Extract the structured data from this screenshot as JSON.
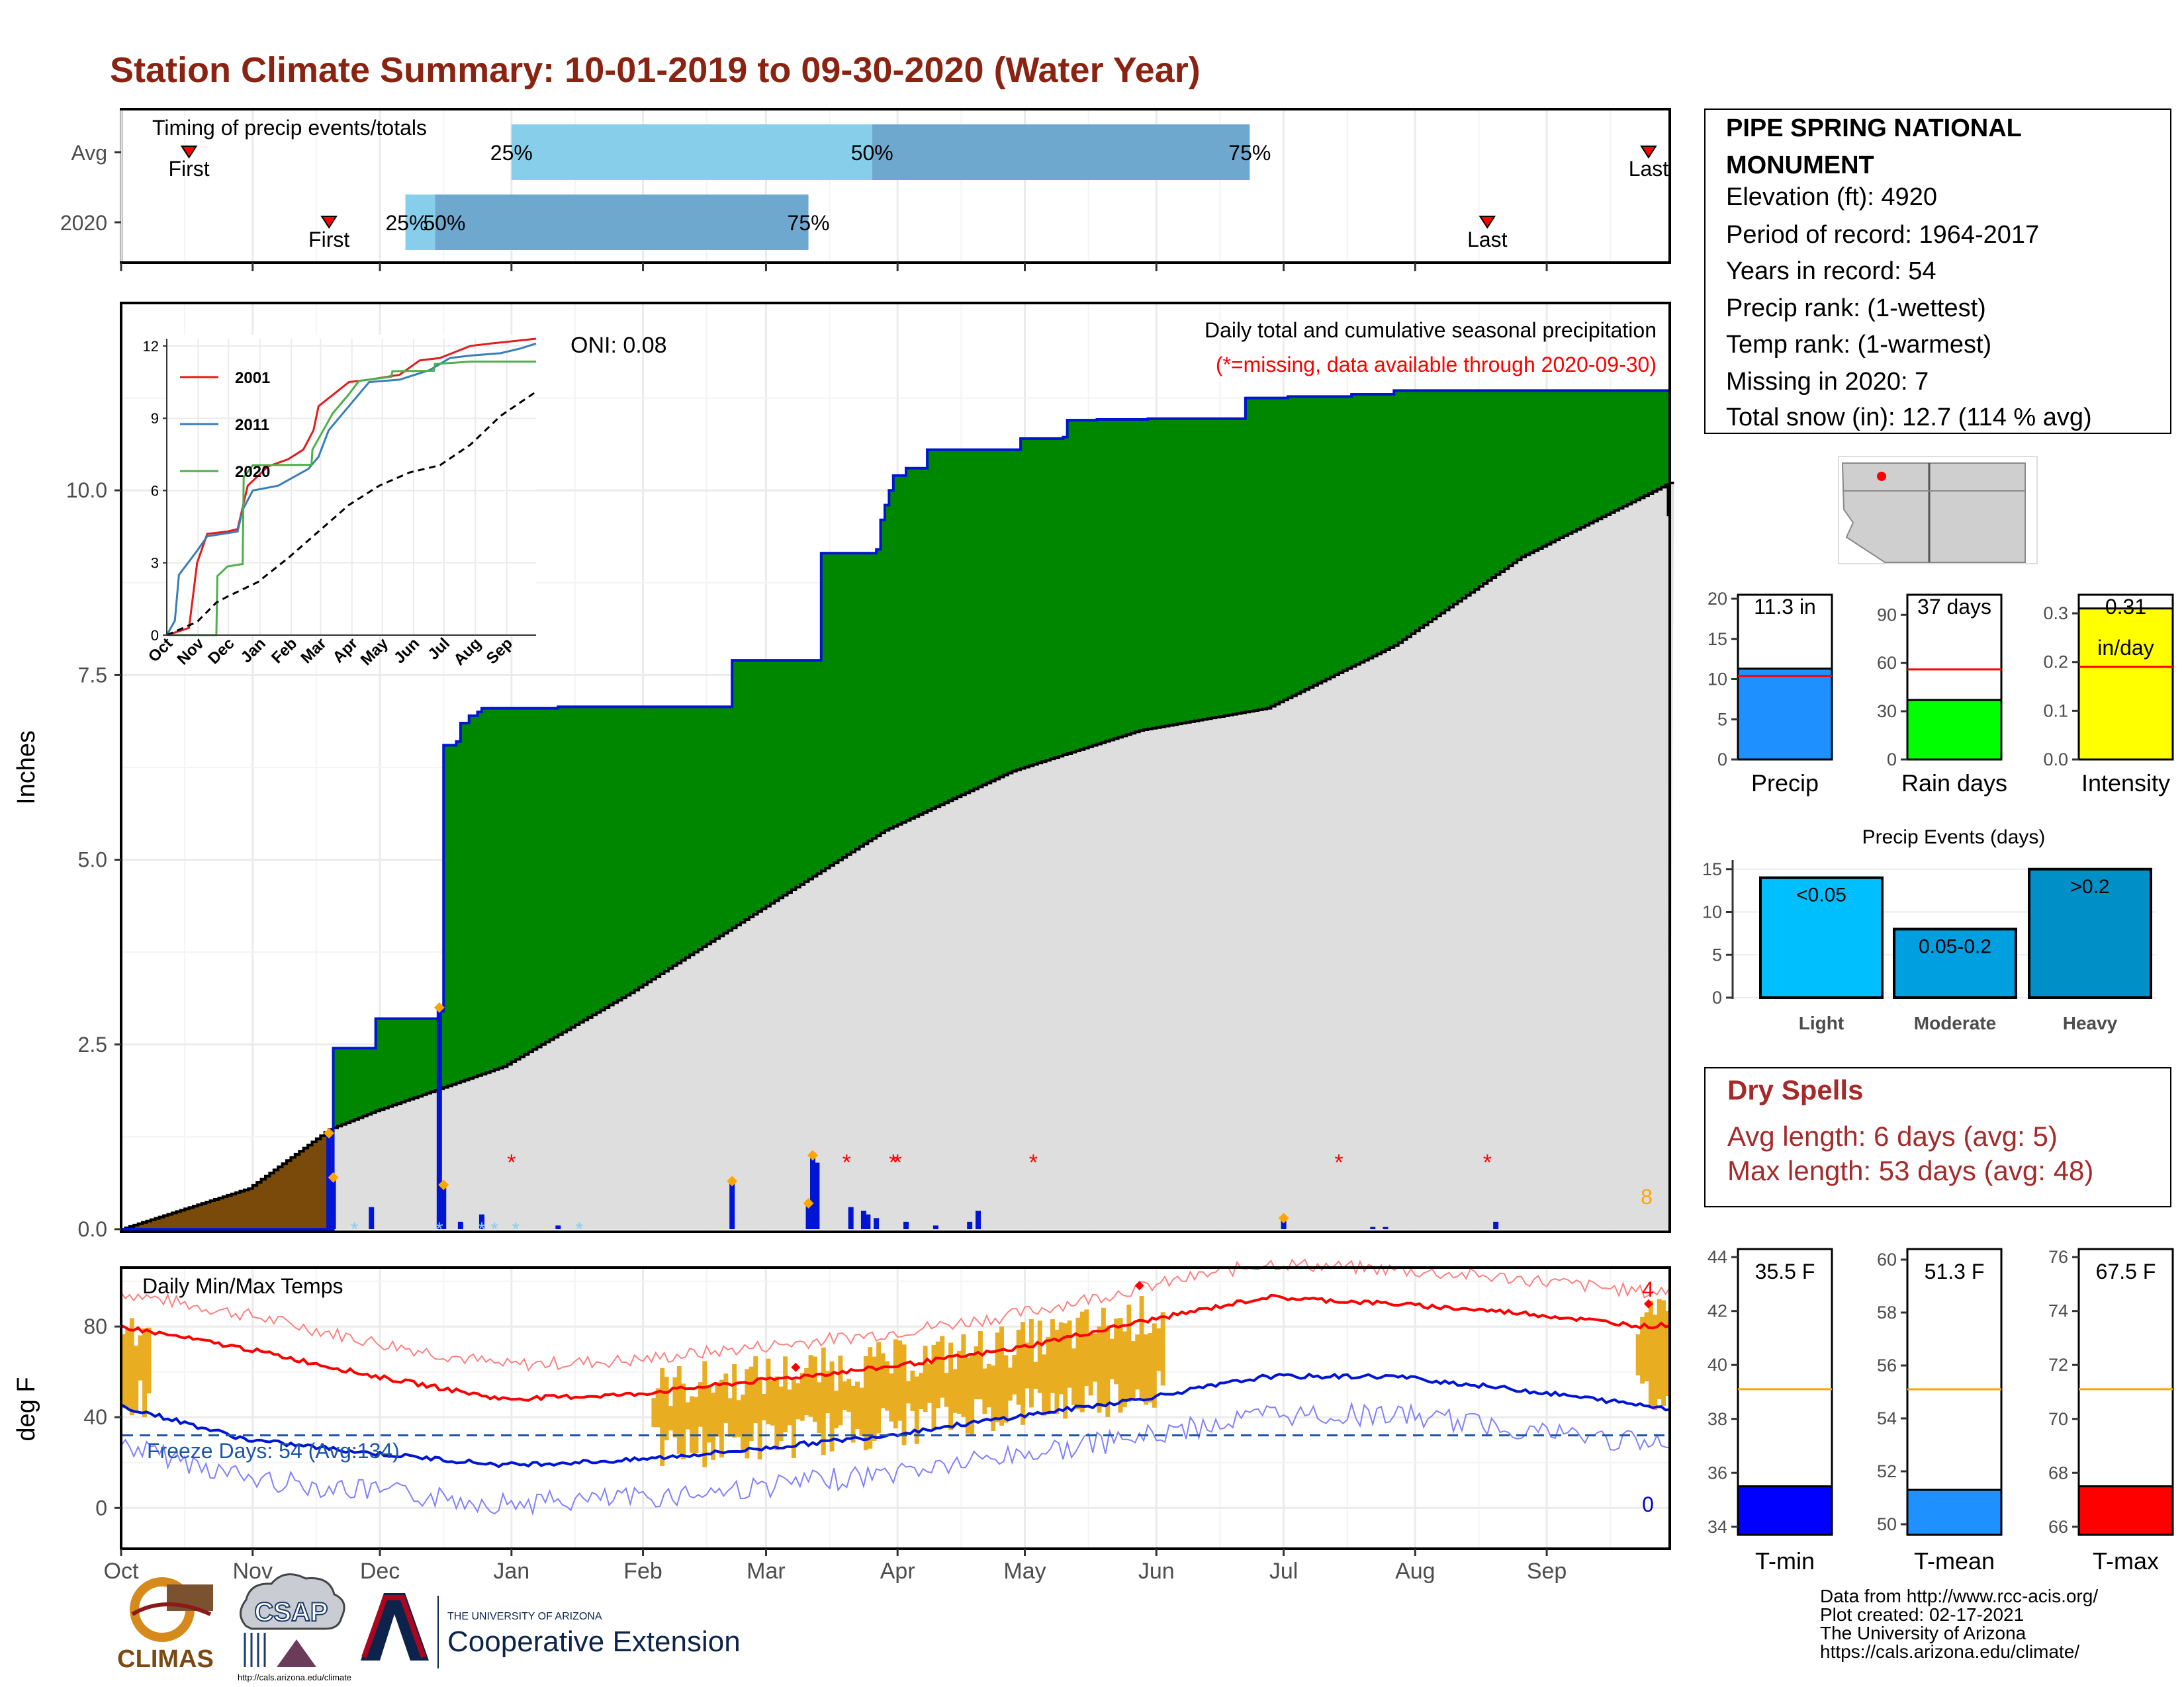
{
  "title": "Station Climate Summary: 10-01-2019 to 09-30-2020 (Water Year)",
  "colors": {
    "title": "#8b2312",
    "precip_area": "#008700",
    "avg_area": "#dedede",
    "deficit_area": "#7a4a0a",
    "precip_line": "#0015d4",
    "daily_bar": "#0015d4",
    "missing": "#ff0000",
    "snow": "#87ceeb",
    "temp_bar": "#e9ad22",
    "tmax_avg": "#ff0000",
    "tmin_avg": "#0015d4",
    "freeze_line": "#1b55a7",
    "light_blue": "#87ceeb",
    "mid_blue": "#6fa8cf"
  },
  "timing": {
    "label": "Timing of precip events/totals",
    "rows": [
      "Avg",
      "2020"
    ],
    "avg": {
      "first": "First",
      "last": "Last",
      "p25": "25%",
      "p50": "50%",
      "p75": "75%"
    },
    "y2020": {
      "first": "First",
      "last": "Last",
      "p25": "25%",
      "p50": "50%",
      "p75": "75%"
    },
    "avg_days": {
      "first": 16,
      "p25": 92,
      "p50": 177,
      "p75": 266,
      "last": 360
    },
    "y2020_days": {
      "first": 49,
      "p25": 67,
      "p50": 74,
      "p75": 162,
      "last": 322
    }
  },
  "precip_panel": {
    "caption": "Daily total and cumulative seasonal precipitation",
    "missing_note": "(*=missing, data available through 2020-09-30)",
    "oni": "ONI: 0.08",
    "ylabel": "Inches",
    "yticks": [
      "0.0",
      "2.5",
      "5.0",
      "7.5",
      "10.0"
    ],
    "count_label": "8"
  },
  "temp_panel": {
    "caption": "Daily Min/Max Temps",
    "ylabel": "deg F",
    "yticks": [
      "0",
      "40",
      "80"
    ],
    "freeze_text": "Freeze Days: 54 (Avg:134)",
    "top_count": "4",
    "bottom_count": "0"
  },
  "months": [
    "Oct",
    "Nov",
    "Dec",
    "Jan",
    "Feb",
    "Mar",
    "Apr",
    "May",
    "Jun",
    "Jul",
    "Aug",
    "Sep"
  ],
  "inset": {
    "months": [
      "Oct",
      "Nov",
      "Dec",
      "Jan",
      "Feb",
      "Mar",
      "Apr",
      "May",
      "Jun",
      "Jul",
      "Aug",
      "Sep"
    ],
    "yticks": [
      "0",
      "3",
      "6",
      "9",
      "12"
    ],
    "legend": [
      {
        "name": "2001",
        "color": "#e41a1c"
      },
      {
        "name": "2011",
        "color": "#377eb8"
      },
      {
        "name": "2020",
        "color": "#4daf4a"
      }
    ]
  },
  "station": {
    "name_line1": "PIPE SPRING NATIONAL",
    "name_line2": "MONUMENT",
    "elevation": "Elevation (ft): 4920",
    "period": "Period of record: 1964-2017",
    "years": "Years in record: 54",
    "precip_rank": "Precip rank:  (1-wettest)",
    "temp_rank": "Temp rank:  (1-warmest)",
    "missing": "Missing in 2020: 7",
    "snow": "Total snow (in): 12.7 (114 % avg)"
  },
  "summary_bars": [
    {
      "label": "Precip",
      "value_text": "11.3 in",
      "value": 11.3,
      "avg": 10.4,
      "ymax": 20,
      "ticks": [
        "0",
        "5",
        "10",
        "15",
        "20"
      ],
      "color": "#1e90ff"
    },
    {
      "label": "Rain days",
      "value_text": "37 days",
      "value": 37,
      "avg": 56,
      "ymax": 100,
      "ticks": [
        "0",
        "30",
        "60",
        "90"
      ],
      "color": "#00ff00"
    },
    {
      "label": "Intensity",
      "value_text": "0.31",
      "unit_text": "in/day",
      "value": 0.31,
      "avg": 0.19,
      "ymax": 0.33,
      "ticks": [
        "0.0",
        "0.1",
        "0.2",
        "0.3"
      ],
      "color": "#ffff00"
    }
  ],
  "precip_events": {
    "title": "Precip Events (days)",
    "ticks": [
      "0",
      "5",
      "10",
      "15"
    ],
    "bars": [
      {
        "label": "Light",
        "text": "<0.05",
        "value": 14,
        "color": "#00bfff"
      },
      {
        "label": "Moderate",
        "text": "0.05-0.2",
        "value": 8,
        "color": "#009fdf"
      },
      {
        "label": "Heavy",
        "text": ">0.2",
        "value": 15,
        "color": "#0090c8"
      }
    ]
  },
  "dry_spells": {
    "title": "Dry Spells",
    "avg": "Avg length: 6 days (avg: 5)",
    "max": "Max length: 53 days (avg: 48)"
  },
  "temp_bars": [
    {
      "label": "T-min",
      "value_text": "35.5 F",
      "value": 35.5,
      "avg": 39.1,
      "ymin": 33.7,
      "ymax": 44.3,
      "ticks": [
        "34",
        "36",
        "38",
        "40",
        "42",
        "44"
      ],
      "color": "#0000ff"
    },
    {
      "label": "T-mean",
      "value_text": "51.3 F",
      "value": 51.3,
      "avg": 55.1,
      "ymin": 49.6,
      "ymax": 60.4,
      "ticks": [
        "50",
        "52",
        "54",
        "56",
        "58",
        "60"
      ],
      "color": "#1e90ff"
    },
    {
      "label": "T-max",
      "value_text": "67.5 F",
      "value": 67.5,
      "avg": 71.1,
      "ymin": 65.7,
      "ymax": 76.3,
      "ticks": [
        "66",
        "68",
        "70",
        "72",
        "74",
        "76"
      ],
      "color": "#ff0000"
    }
  ],
  "footer": {
    "line1": "Data from http://www.rcc-acis.org/",
    "line2": "Plot created: 02-17-2021",
    "line3": "The University of Arizona",
    "line4": "https://cals.arizona.edu/climate/"
  },
  "logos": {
    "climas": "CLIMAS",
    "csap": "CSAP",
    "csap_url": "http://cals.arizona.edu/climate",
    "ua_small": "THE UNIVERSITY OF ARIZONA",
    "ua_big": "Cooperative Extension"
  },
  "chart_data": {
    "type": "area",
    "title": "Station Climate Summary: 10-01-2019 to 09-30-2020 (Water Year)",
    "ylabel": "Inches",
    "ylim": [
      0,
      12.5
    ],
    "x_axis": "2019-10-01 to 2020-09-30 (day of water year)",
    "series": [
      {
        "name": "Cumulative precipitation 2020",
        "x": [
          0,
          49,
          50,
          60,
          75,
          76,
          79,
          80,
          82,
          84,
          85,
          101,
          103,
          143,
          144,
          164,
          165,
          178,
          179,
          180,
          181,
          182,
          185,
          190,
          210,
          212,
          222,
          223,
          226,
          230,
          240,
          242,
          253,
          264,
          265,
          274,
          275,
          290,
          300,
          360,
          365
        ],
        "y": [
          0,
          0,
          2.45,
          2.85,
          2.95,
          6.55,
          6.6,
          6.85,
          6.95,
          7.0,
          7.05,
          7.05,
          7.07,
          7.07,
          7.7,
          7.7,
          9.15,
          9.2,
          9.6,
          9.8,
          10.0,
          10.2,
          10.3,
          10.55,
          10.55,
          10.7,
          10.72,
          10.95,
          10.95,
          10.96,
          10.96,
          10.97,
          10.97,
          10.97,
          11.25,
          11.25,
          11.27,
          11.3,
          11.35,
          11.35,
          11.35
        ]
      },
      {
        "name": "Average cumulative precipitation",
        "x": [
          0,
          30,
          49,
          60,
          90,
          120,
          150,
          180,
          210,
          240,
          270,
          300,
          330,
          365
        ],
        "y": [
          0,
          0.55,
          1.35,
          1.6,
          2.2,
          3.2,
          4.3,
          5.4,
          6.2,
          6.75,
          7.05,
          7.9,
          9.1,
          10.1
        ]
      },
      {
        "name": "Daily precipitation",
        "x": [
          49,
          50,
          59,
          75,
          76,
          80,
          85,
          103,
          144,
          162,
          163,
          164,
          172,
          175,
          176,
          178,
          185,
          192,
          200,
          202,
          274,
          295,
          298,
          324
        ],
        "y": [
          1.3,
          0.7,
          0.3,
          3.0,
          0.6,
          0.1,
          0.2,
          0.05,
          0.65,
          0.35,
          1.0,
          0.9,
          0.3,
          0.25,
          0.2,
          0.15,
          0.1,
          0.05,
          0.1,
          0.25,
          0.15,
          0.03,
          0.03,
          0.1
        ]
      },
      {
        "name": "Missing days",
        "x": [
          92,
          171,
          182,
          183,
          215,
          287,
          322
        ],
        "y": [
          1.0,
          1.0,
          1.0,
          1.0,
          1.0,
          1.0,
          1.0
        ]
      },
      {
        "name": "Average Tmax (F)",
        "x": [
          0,
          30,
          60,
          90,
          120,
          150,
          180,
          210,
          240,
          270,
          300,
          330,
          360,
          365
        ],
        "y": [
          80,
          70,
          58,
          48,
          50,
          56,
          62,
          70,
          82,
          93,
          90,
          86,
          80,
          81
        ]
      },
      {
        "name": "Average Tmin (F)",
        "x": [
          0,
          30,
          60,
          90,
          120,
          150,
          180,
          210,
          240,
          270,
          300,
          330,
          360,
          365
        ],
        "y": [
          45,
          30,
          24,
          19,
          21,
          26,
          32,
          40,
          48,
          58,
          58,
          52,
          45,
          44
        ]
      }
    ]
  }
}
